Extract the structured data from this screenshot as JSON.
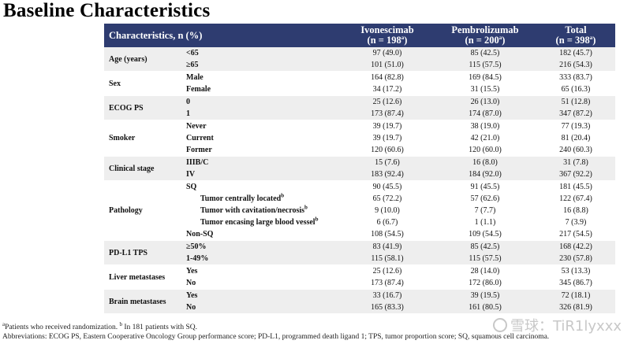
{
  "title": "Baseline Characteristics",
  "header": {
    "characteristics": "Characteristics, n (%)",
    "arm1_name": "Ivonescimab",
    "arm1_n": "(n = 198",
    "arm2_name": "Pembrolizumab",
    "arm2_n": "(n = 200",
    "total_name": "Total",
    "total_n": "(n = 398",
    "sup_a": "a",
    "close_paren": ")"
  },
  "groups": [
    {
      "category": "Age (years)",
      "rows": [
        {
          "label": "<65",
          "ivo": "97 (49.0)",
          "pem": "85 (42.5)",
          "total": "182 (45.7)"
        },
        {
          "label": "≥65",
          "ivo": "101 (51.0)",
          "pem": "115 (57.5)",
          "total": "216 (54.3)"
        }
      ]
    },
    {
      "category": "Sex",
      "rows": [
        {
          "label": "Male",
          "ivo": "164 (82.8)",
          "pem": "169 (84.5)",
          "total": "333 (83.7)"
        },
        {
          "label": "Female",
          "ivo": "34 (17.2)",
          "pem": "31 (15.5)",
          "total": "65 (16.3)"
        }
      ]
    },
    {
      "category": "ECOG PS",
      "rows": [
        {
          "label": "0",
          "ivo": "25 (12.6)",
          "pem": "26 (13.0)",
          "total": "51 (12.8)"
        },
        {
          "label": "1",
          "ivo": "173 (87.4)",
          "pem": "174 (87.0)",
          "total": "347 (87.2)"
        }
      ]
    },
    {
      "category": "Smoker",
      "rows": [
        {
          "label": "Never",
          "ivo": "39 (19.7)",
          "pem": "38 (19.0)",
          "total": "77 (19.3)"
        },
        {
          "label": "Current",
          "ivo": "39 (19.7)",
          "pem": "42 (21.0)",
          "total": "81 (20.4)"
        },
        {
          "label": "Former",
          "ivo": "120 (60.6)",
          "pem": "120 (60.0)",
          "total": "240 (60.3)"
        }
      ]
    },
    {
      "category": "Clinical stage",
      "rows": [
        {
          "label": "IIIB/C",
          "ivo": "15 (7.6)",
          "pem": "16 (8.0)",
          "total": "31 (7.8)"
        },
        {
          "label": "IV",
          "ivo": "183 (92.4)",
          "pem": "184 (92.0)",
          "total": "367 (92.2)"
        }
      ]
    },
    {
      "category": "Pathology",
      "rows": [
        {
          "label": "SQ",
          "ivo": "90 (45.5)",
          "pem": "91 (45.5)",
          "total": "181 (45.5)"
        },
        {
          "label": "Tumor centrally located",
          "sup": "b",
          "indent": true,
          "ivo": "65 (72.2)",
          "pem": "57 (62.6)",
          "total": "122 (67.4)"
        },
        {
          "label": "Tumor with cavitation/necrosis",
          "sup": "b",
          "indent": true,
          "ivo": "9 (10.0)",
          "pem": "7 (7.7)",
          "total": "16 (8.8)"
        },
        {
          "label": "Tumor encasing large blood vessel",
          "sup": "b",
          "indent": true,
          "ivo": "6 (6.7)",
          "pem": "1 (1.1)",
          "total": "7 (3.9)"
        },
        {
          "label": "Non-SQ",
          "ivo": "108 (54.5)",
          "pem": "109 (54.5)",
          "total": "217 (54.5)"
        }
      ]
    },
    {
      "category": "PD-L1 TPS",
      "rows": [
        {
          "label": "≥50%",
          "ivo": "83 (41.9)",
          "pem": "85 (42.5)",
          "total": "168 (42.2)"
        },
        {
          "label": "1-49%",
          "ivo": "115 (58.1)",
          "pem": "115 (57.5)",
          "total": "230 (57.8)"
        }
      ]
    },
    {
      "category": "Liver metastases",
      "rows": [
        {
          "label": "Yes",
          "ivo": "25 (12.6)",
          "pem": "28 (14.0)",
          "total": "53 (13.3)"
        },
        {
          "label": "No",
          "ivo": "173 (87.4)",
          "pem": "172 (86.0)",
          "total": "345 (86.7)"
        }
      ]
    },
    {
      "category": "Brain metastases",
      "rows": [
        {
          "label": "Yes",
          "ivo": "33 (16.7)",
          "pem": "39 (19.5)",
          "total": "72 (18.1)"
        },
        {
          "label": "No",
          "ivo": "165 (83.3)",
          "pem": "161 (80.5)",
          "total": "326 (81.9)"
        }
      ]
    }
  ],
  "footnotes": {
    "sup_a": "a",
    "note_a": "Patients who received randomization.",
    "sup_b": "b",
    "note_b": "In 181 patients with SQ.",
    "abbreviations": "Abbreviations: ECOG PS, Eastern Cooperative Oncology Group performance score; PD-L1, programmed death ligand 1; TPS, tumor proportion score; SQ, squamous cell carcinoma."
  },
  "watermark": {
    "text": "雪球：TiR1lyxxx",
    "icon": "snowball-logo-icon"
  }
}
